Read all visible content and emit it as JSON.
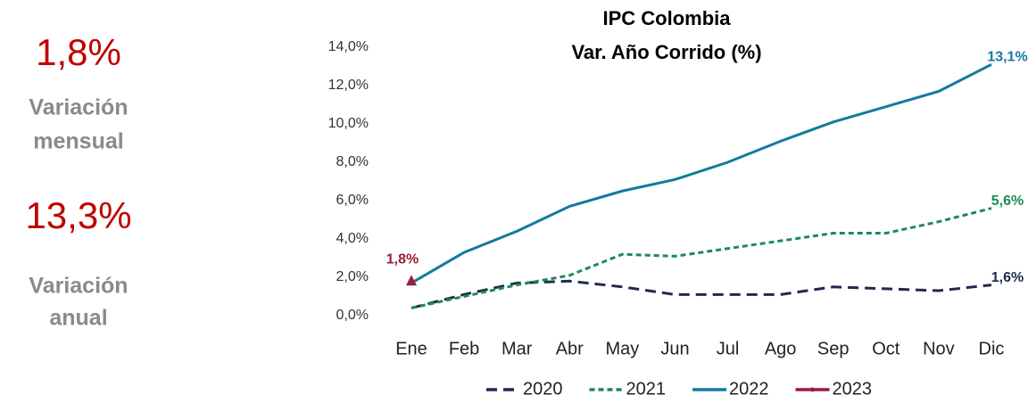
{
  "kpis": [
    {
      "value": "1,8%",
      "label": [
        "Variación",
        "mensual"
      ]
    },
    {
      "value": "13,3%",
      "label": [
        "Variación",
        "anual"
      ]
    }
  ],
  "chart_data": {
    "type": "line",
    "title": "IPC Colombia",
    "subtitle": "Var. Año Corrido (%)",
    "categories": [
      "Ene",
      "Feb",
      "Mar",
      "Abr",
      "May",
      "Jun",
      "Jul",
      "Ago",
      "Sep",
      "Oct",
      "Nov",
      "Dic"
    ],
    "ylim": [
      0,
      14
    ],
    "yticks": [
      {
        "value": 0,
        "label": "0,0%"
      },
      {
        "value": 2,
        "label": "2,0%"
      },
      {
        "value": 4,
        "label": "4,0%"
      },
      {
        "value": 6,
        "label": "6,0%"
      },
      {
        "value": 8,
        "label": "8,0%"
      },
      {
        "value": 10,
        "label": "10,0%"
      },
      {
        "value": 12,
        "label": "12,0%"
      },
      {
        "value": 14,
        "label": "14,0%"
      }
    ],
    "grid": false,
    "legend": "bottom",
    "series": [
      {
        "name": "2020",
        "color": "#1f2a4e",
        "dash": "dashed",
        "values": [
          0.4,
          1.1,
          1.7,
          1.8,
          1.5,
          1.1,
          1.1,
          1.1,
          1.5,
          1.4,
          1.3,
          1.6
        ],
        "value_labels": [
          null,
          null,
          null,
          null,
          null,
          null,
          null,
          null,
          null,
          null,
          null,
          "1,6%"
        ]
      },
      {
        "name": "2021",
        "color": "#1a8a5a",
        "dash": "dotted",
        "values": [
          0.4,
          1.0,
          1.6,
          2.1,
          3.2,
          3.1,
          3.5,
          3.9,
          4.3,
          4.3,
          4.9,
          5.6
        ],
        "value_labels": [
          null,
          null,
          null,
          null,
          null,
          null,
          null,
          null,
          null,
          null,
          null,
          "5,6%"
        ]
      },
      {
        "name": "2022",
        "color": "#1479a0",
        "dash": "solid",
        "values": [
          1.7,
          3.3,
          4.4,
          5.7,
          6.5,
          7.1,
          8.0,
          9.1,
          10.1,
          10.9,
          11.7,
          13.1
        ],
        "value_labels": [
          null,
          null,
          null,
          null,
          null,
          null,
          null,
          null,
          null,
          null,
          null,
          "13,1%"
        ]
      },
      {
        "name": "2023",
        "color": "#9b1b3a",
        "dash": "solid",
        "marker": "triangle",
        "values": [
          1.8,
          null,
          null,
          null,
          null,
          null,
          null,
          null,
          null,
          null,
          null,
          null
        ],
        "value_labels": [
          "1,8%",
          null,
          null,
          null,
          null,
          null,
          null,
          null,
          null,
          null,
          null,
          null
        ]
      }
    ]
  }
}
